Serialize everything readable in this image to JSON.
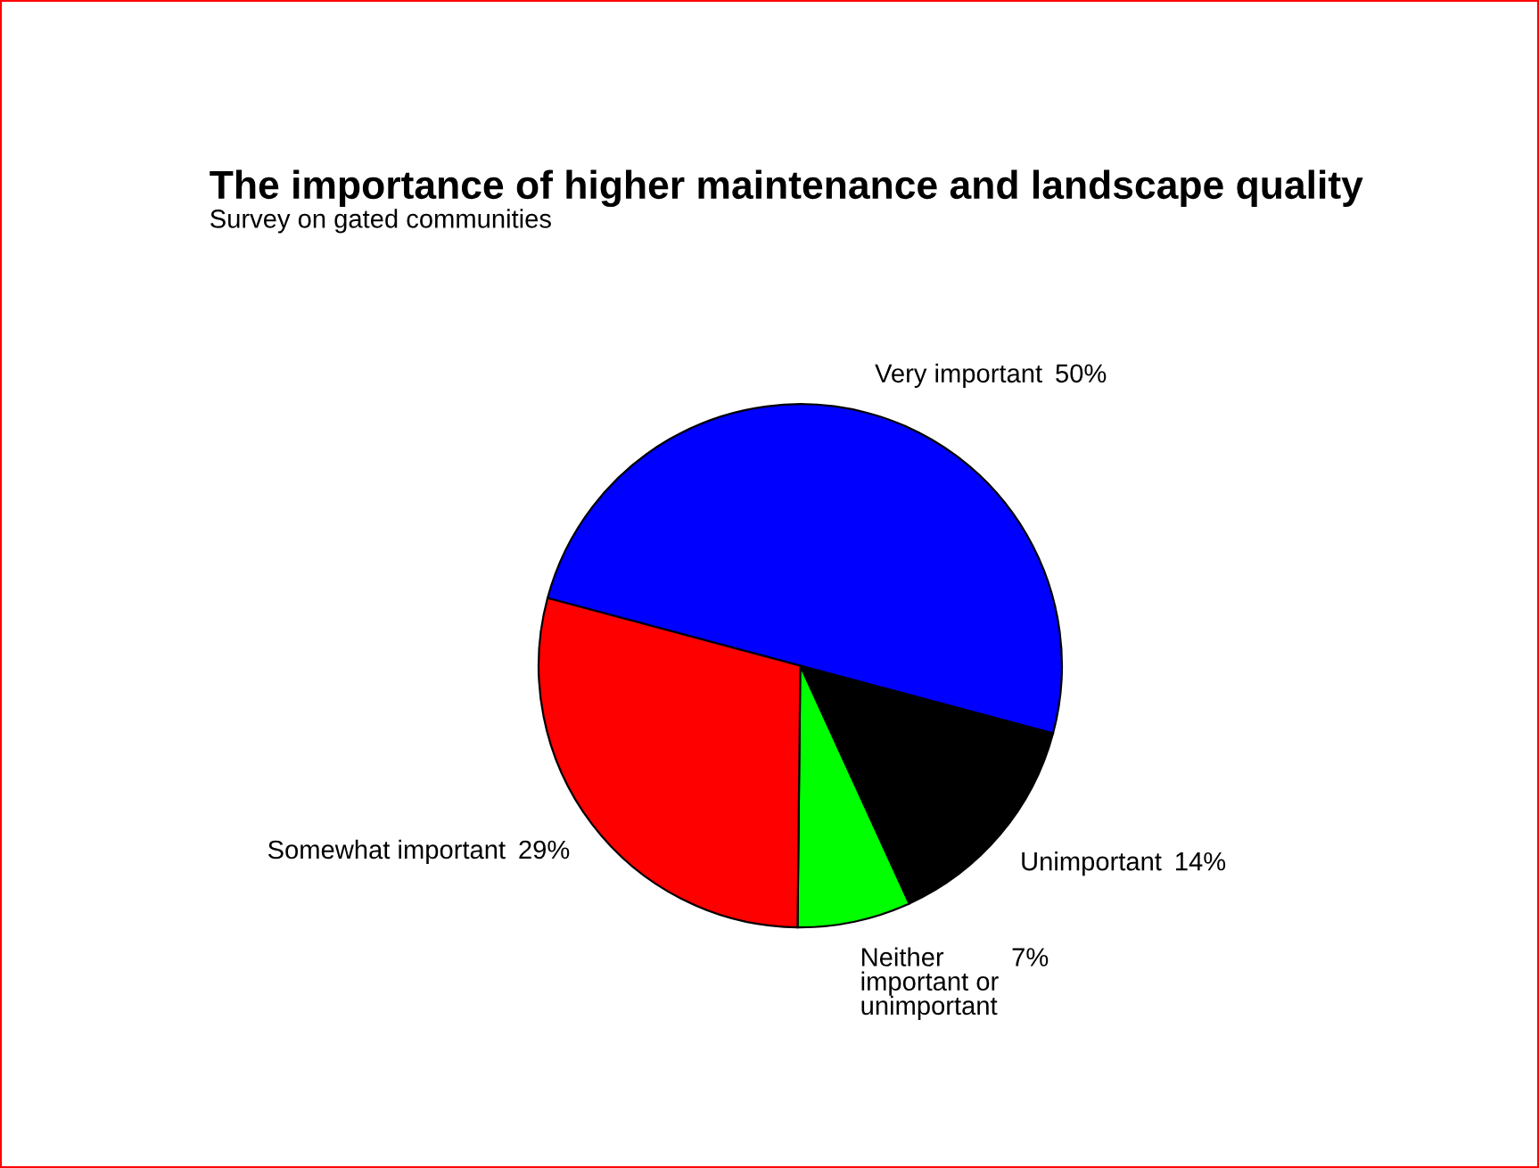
{
  "chart_data": {
    "type": "pie",
    "title": "The importance of higher maintenance and landscape quality",
    "subtitle": "Survey on gated communities",
    "categories": [
      "Very important",
      "Unimportant",
      "Neither\nimportant or\nunimportant",
      "Somewhat important"
    ],
    "values": [
      50,
      14,
      7,
      29
    ],
    "value_labels": [
      "50%",
      "14%",
      "7%",
      "29%"
    ],
    "colors": [
      "#0000ff",
      "#000000",
      "#00ff00",
      "#ff0000"
    ]
  }
}
